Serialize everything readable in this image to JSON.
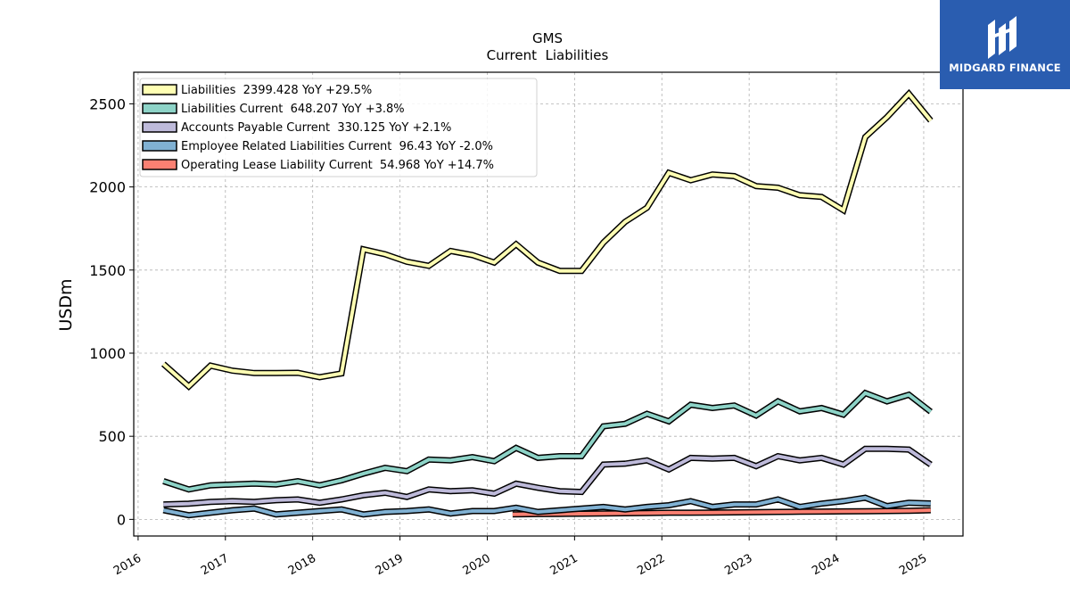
{
  "chart_data": {
    "type": "line",
    "title": "GMS",
    "subtitle": "Current  Liabilities",
    "ylabel": "USDm",
    "xlabel": "",
    "xlim": [
      2015.95,
      2025.45
    ],
    "ylim": [
      -100,
      2690
    ],
    "yticks": [
      0,
      500,
      1000,
      1500,
      2000,
      2500
    ],
    "xticks": [
      2016,
      2017,
      2018,
      2019,
      2020,
      2021,
      2022,
      2023,
      2024,
      2025
    ],
    "grid": true,
    "legend_position": "top-left",
    "series": [
      {
        "name": "Liabilities  2399.428 YoY +29.5%",
        "color": "#ffffb3",
        "x": [
          2016.29,
          2016.58,
          2016.83,
          2017.08,
          2017.33,
          2017.58,
          2017.83,
          2018.08,
          2018.33,
          2018.58,
          2018.83,
          2019.08,
          2019.33,
          2019.58,
          2019.83,
          2020.08,
          2020.33,
          2020.58,
          2020.83,
          2021.08,
          2021.33,
          2021.58,
          2021.83,
          2022.08,
          2022.33,
          2022.58,
          2022.83,
          2023.08,
          2023.33,
          2023.58,
          2023.83,
          2024.08,
          2024.33,
          2024.58,
          2024.83,
          2025.08
        ],
        "y": [
          935,
          800,
          925,
          895,
          880,
          880,
          882,
          855,
          878,
          1625,
          1595,
          1550,
          1525,
          1615,
          1590,
          1545,
          1655,
          1545,
          1495,
          1495,
          1665,
          1790,
          1875,
          2085,
          2040,
          2075,
          2065,
          2005,
          1995,
          1950,
          1940,
          1860,
          2300,
          2420,
          2560,
          2399
        ]
      },
      {
        "name": "Liabilities Current  648.207 YoY +3.8%",
        "color": "#8dd3c7",
        "x": [
          2016.29,
          2016.58,
          2016.83,
          2017.08,
          2017.33,
          2017.58,
          2017.83,
          2018.08,
          2018.33,
          2018.58,
          2018.83,
          2019.08,
          2019.33,
          2019.58,
          2019.83,
          2020.08,
          2020.33,
          2020.58,
          2020.83,
          2021.08,
          2021.33,
          2021.58,
          2021.83,
          2022.08,
          2022.33,
          2022.58,
          2022.83,
          2023.08,
          2023.33,
          2023.58,
          2023.83,
          2024.08,
          2024.33,
          2024.58,
          2024.83,
          2025.08
        ],
        "y": [
          230,
          180,
          205,
          210,
          215,
          210,
          230,
          205,
          235,
          275,
          310,
          290,
          360,
          355,
          375,
          350,
          430,
          370,
          380,
          380,
          560,
          575,
          635,
          590,
          690,
          670,
          685,
          625,
          710,
          650,
          670,
          630,
          760,
          710,
          750,
          648
        ]
      },
      {
        "name": "Accounts Payable Current  330.125 YoY +2.1%",
        "color": "#bebada",
        "x": [
          2016.29,
          2016.58,
          2016.83,
          2017.08,
          2017.33,
          2017.58,
          2017.83,
          2018.08,
          2018.33,
          2018.58,
          2018.83,
          2019.08,
          2019.33,
          2019.58,
          2019.83,
          2020.08,
          2020.33,
          2020.58,
          2020.83,
          2021.08,
          2021.33,
          2021.58,
          2021.83,
          2022.08,
          2022.33,
          2022.58,
          2022.83,
          2023.08,
          2023.33,
          2023.58,
          2023.83,
          2024.08,
          2024.33,
          2024.58,
          2024.83,
          2025.08
        ],
        "y": [
          90,
          95,
          105,
          110,
          105,
          115,
          120,
          100,
          120,
          145,
          160,
          135,
          180,
          170,
          175,
          155,
          215,
          190,
          170,
          165,
          330,
          335,
          355,
          300,
          370,
          365,
          370,
          320,
          380,
          355,
          370,
          330,
          425,
          425,
          420,
          330
        ]
      },
      {
        "name": "Employee Related Liabilities Current  96.43 YoY -2.0%",
        "color": "#80b1d3",
        "x": [
          2016.29,
          2016.58,
          2016.83,
          2017.08,
          2017.33,
          2017.58,
          2017.83,
          2018.08,
          2018.33,
          2018.58,
          2018.83,
          2019.08,
          2019.33,
          2019.58,
          2019.83,
          2020.08,
          2020.33,
          2020.58,
          2020.83,
          2021.08,
          2021.33,
          2021.58,
          2021.83,
          2022.08,
          2022.33,
          2022.58,
          2022.83,
          2023.08,
          2023.33,
          2023.58,
          2023.83,
          2024.08,
          2024.33,
          2024.58,
          2024.83,
          2025.08
        ],
        "y": [
          55,
          25,
          40,
          55,
          65,
          30,
          40,
          50,
          60,
          30,
          45,
          50,
          60,
          35,
          50,
          50,
          70,
          45,
          55,
          65,
          75,
          60,
          75,
          85,
          110,
          75,
          90,
          90,
          120,
          75,
          95,
          110,
          130,
          80,
          100,
          96
        ]
      },
      {
        "name": "Operating Lease Liability Current  54.968 YoY +14.7%",
        "color": "#fb8072",
        "x": [
          2020.29,
          2020.58,
          2020.83,
          2021.08,
          2021.33,
          2021.58,
          2021.83,
          2022.08,
          2022.33,
          2022.58,
          2022.83,
          2023.08,
          2023.33,
          2023.58,
          2023.83,
          2024.08,
          2024.33,
          2024.58,
          2024.83,
          2025.08
        ],
        "y": [
          30,
          32,
          33,
          34,
          36,
          37,
          38,
          40,
          40,
          41,
          42,
          43,
          45,
          46,
          47,
          48,
          49,
          50,
          52,
          55
        ]
      }
    ]
  },
  "logo": {
    "text": "MIDGARD FINANCE",
    "bg_color": "#2a5db0"
  }
}
